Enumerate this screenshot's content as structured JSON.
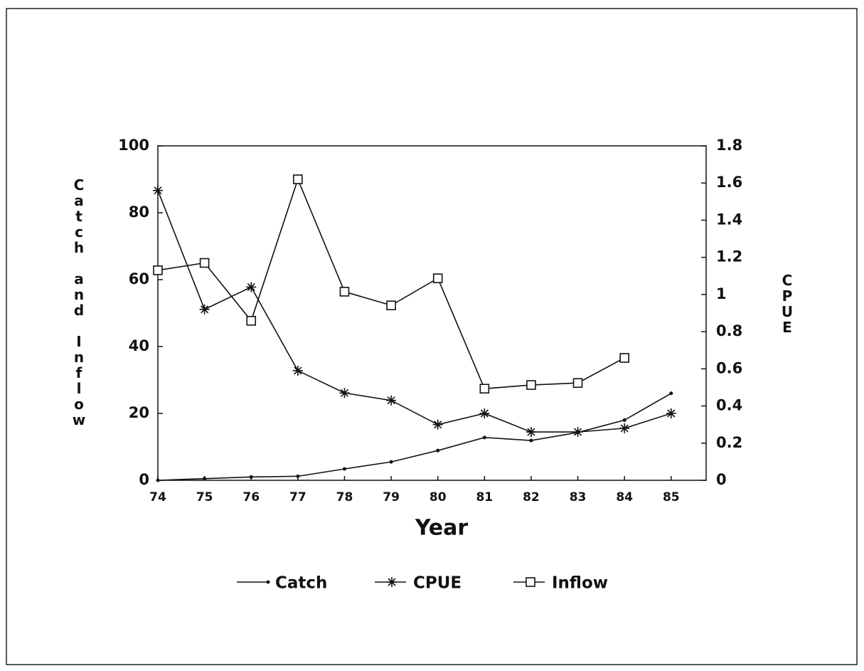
{
  "chart_data": {
    "type": "line",
    "xlabel": "Year",
    "ylabel": "Catch and Inflow",
    "y2label": "CPUE",
    "x": [
      74,
      75,
      76,
      77,
      78,
      79,
      80,
      81,
      82,
      83,
      84,
      85
    ],
    "xlim": [
      74,
      85.75
    ],
    "xticks": [
      74,
      75,
      76,
      77,
      78,
      79,
      80,
      81,
      82,
      83,
      84,
      85
    ],
    "ylim": [
      0,
      100
    ],
    "yticks": [
      0,
      20,
      40,
      60,
      80,
      100
    ],
    "y2lim": [
      0,
      1.8
    ],
    "y2ticks": [
      0,
      0.2,
      0.4,
      0.6,
      0.8,
      1,
      1.2,
      1.4,
      1.6,
      1.8
    ],
    "legend": "bottom",
    "series": [
      {
        "name": "Catch",
        "color": "#111111",
        "marker": "dot",
        "values": [
          0,
          0.5,
          1,
          1.2,
          3.4,
          5.5,
          8.9,
          12.8,
          11.9,
          14.3,
          18,
          26
        ]
      },
      {
        "name": "CPUE",
        "color": "#111111",
        "marker": "asterisk",
        "axis": "y2",
        "values": [
          1.56,
          0.92,
          1.04,
          0.59,
          0.47,
          0.43,
          0.3,
          0.36,
          0.26,
          0.26,
          0.28,
          0.36
        ]
      },
      {
        "name": "Inflow",
        "color": "#111111",
        "marker": "square",
        "values": [
          62.8,
          65,
          47.7,
          90,
          56.4,
          52.3,
          60.4,
          27.4,
          28.5,
          29.1,
          36.6,
          null
        ]
      }
    ]
  }
}
